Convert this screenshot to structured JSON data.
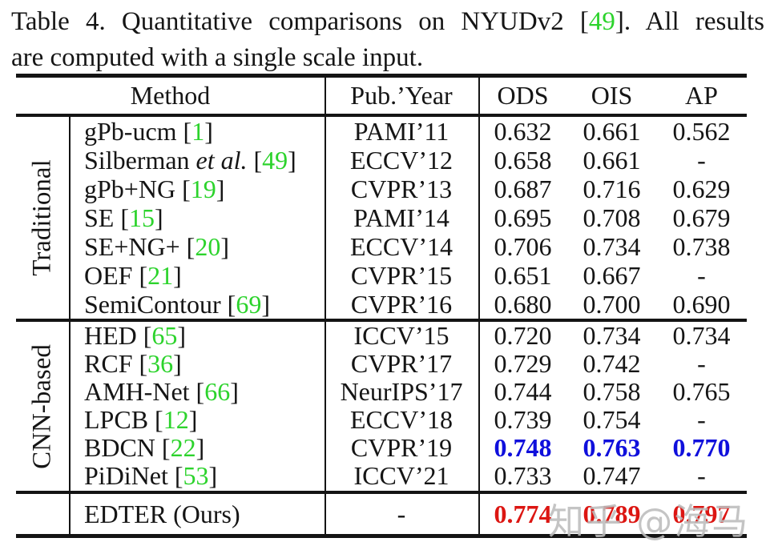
{
  "caption": {
    "t1": "Table 4.  Quantitative comparisons on NYUDv2 [",
    "ref": "49",
    "t2": "].  All results",
    "line2": "are computed with a single scale input."
  },
  "header": {
    "method": "Method",
    "pub": "Pub.’Year",
    "ods": "ODS",
    "ois": "OIS",
    "ap": "AP"
  },
  "punct": {
    "lb": "[",
    "rb": "]"
  },
  "sections": [
    {
      "label": "Traditional",
      "rows": [
        {
          "name": "gPb-ucm",
          "etal": "",
          "ref": "1",
          "pub": "PAMI’11",
          "ods": "0.632",
          "ois": "0.661",
          "ap": "0.562"
        },
        {
          "name": "Silberman",
          "etal": "et al.",
          "ref": "49",
          "pub": "ECCV’12",
          "ods": "0.658",
          "ois": "0.661",
          "ap": "-"
        },
        {
          "name": "gPb+NG",
          "etal": "",
          "ref": "19",
          "pub": "CVPR’13",
          "ods": "0.687",
          "ois": "0.716",
          "ap": "0.629"
        },
        {
          "name": "SE",
          "etal": "",
          "ref": "15",
          "pub": "PAMI’14",
          "ods": "0.695",
          "ois": "0.708",
          "ap": "0.679"
        },
        {
          "name": "SE+NG+",
          "etal": "",
          "ref": "20",
          "pub": "ECCV’14",
          "ods": "0.706",
          "ois": "0.734",
          "ap": "0.738"
        },
        {
          "name": "OEF",
          "etal": "",
          "ref": "21",
          "pub": "CVPR’15",
          "ods": "0.651",
          "ois": "0.667",
          "ap": "-"
        },
        {
          "name": "SemiContour",
          "etal": "",
          "ref": "69",
          "pub": "CVPR’16",
          "ods": "0.680",
          "ois": "0.700",
          "ap": "0.690"
        }
      ]
    },
    {
      "label": "CNN-based",
      "rows": [
        {
          "name": "HED",
          "etal": "",
          "ref": "65",
          "pub": "ICCV’15",
          "ods": "0.720",
          "ois": "0.734",
          "ap": "0.734"
        },
        {
          "name": "RCF",
          "etal": "",
          "ref": "36",
          "pub": "CVPR’17",
          "ods": "0.729",
          "ois": "0.742",
          "ap": "-"
        },
        {
          "name": "AMH-Net",
          "etal": "",
          "ref": "66",
          "pub": "NeurIPS’17",
          "ods": "0.744",
          "ois": "0.758",
          "ap": "0.765"
        },
        {
          "name": "LPCB",
          "etal": "",
          "ref": "12",
          "pub": "ECCV’18",
          "ods": "0.739",
          "ois": "0.754",
          "ap": "-"
        },
        {
          "name": "BDCN",
          "etal": "",
          "ref": "22",
          "pub": "CVPR’19",
          "ods": "0.748",
          "ois": "0.763",
          "ap": "0.770",
          "highlight": "blue"
        },
        {
          "name": "PiDiNet",
          "etal": "",
          "ref": "53",
          "pub": "ICCV’21",
          "ods": "0.733",
          "ois": "0.747",
          "ap": "-"
        }
      ]
    }
  ],
  "footer": {
    "name": "EDTER (Ours)",
    "pub": "-",
    "ods": "0.774",
    "ois": "0.789",
    "ap": "0.797",
    "highlight": "red"
  },
  "watermark": "知乎 @海马",
  "colors": {
    "ref-green": "#2cd32c",
    "highlight-blue": "#0f0fdc",
    "highlight-red": "#dc1612",
    "watermark-gray": "#bdbdbd",
    "rule-black": "#141414"
  }
}
